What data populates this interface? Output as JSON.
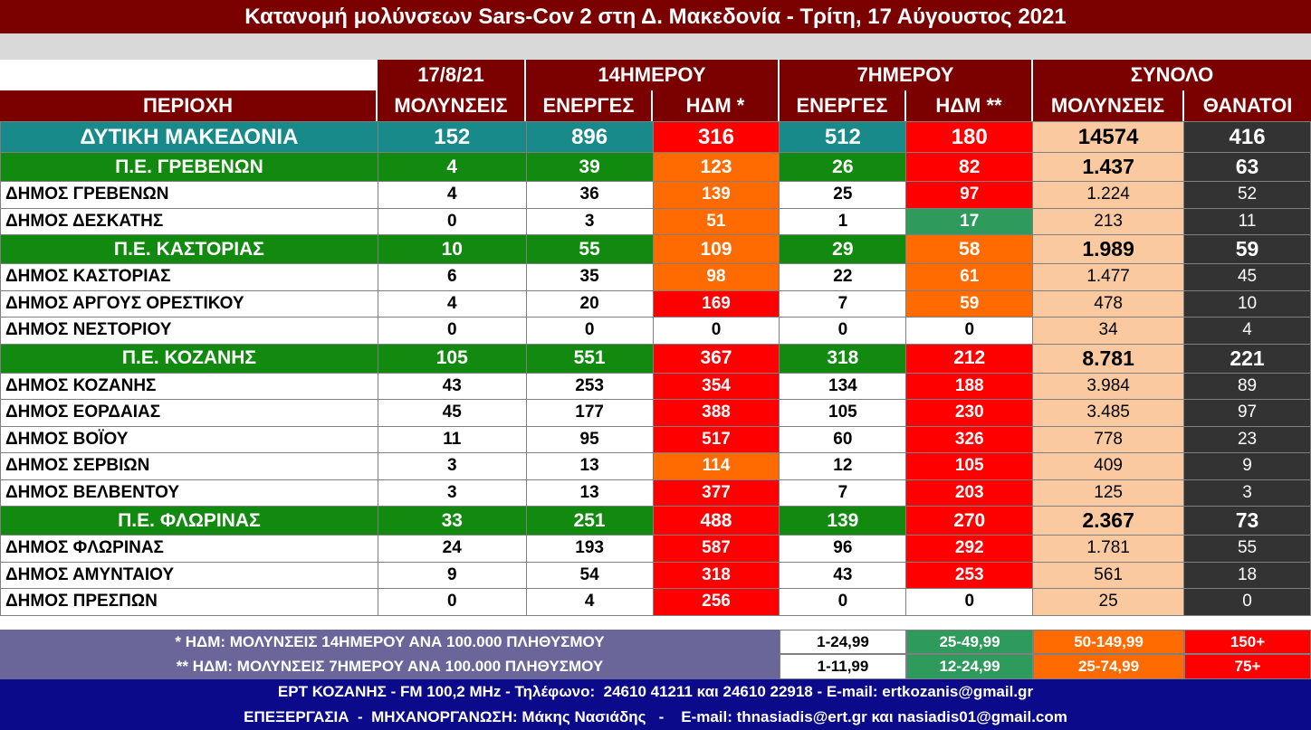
{
  "title": "Κατανομή μολύνσεων Sars-Cov 2 στη Δ. Μακεδονία - Τρίτη, 17 Αύγουστος 2021",
  "header": {
    "group_date": "17/8/21",
    "group_14": "14ΗΜΕΡΟΥ",
    "group_7": "7ΗΜΕΡΟΥ",
    "group_total": "ΣΥΝΟΛΟ",
    "col_area": "ΠΕΡΙΟΧΗ",
    "col_infections": "ΜΟΛΥΝΣΕΙΣ",
    "col_active14": "ΕΝΕΡΓΕΣ",
    "col_idm14": "ΗΔΜ *",
    "col_active7": "ΕΝΕΡΓΕΣ",
    "col_idm7": "ΗΔΜ **",
    "col_total_infections": "ΜΟΛΥΝΣΕΙΣ",
    "col_deaths": "ΘΑΝΑΤΟΙ"
  },
  "colors": {
    "title_bg": "#7b0000",
    "region_bg": "#188a8a",
    "pe_bg": "#118a0f",
    "red": "#ff0000",
    "orange": "#ff6b00",
    "green_level": "#2e9b5d",
    "total_bg": "#fbc99f",
    "deaths_bg": "#333333",
    "legend_bg": "#6a6699",
    "footer_bg": "#0a0a8a"
  },
  "rows": [
    {
      "type": "region",
      "name": "ΔΥΤΙΚΗ ΜΑΚΕΔΟΝΙΑ",
      "infections": "152",
      "active14": "896",
      "idm14": "316",
      "idm14_level": "red",
      "active7": "512",
      "idm7": "180",
      "idm7_level": "red",
      "total": "14574",
      "deaths": "416"
    },
    {
      "type": "pe",
      "name": "Π.Ε. ΓΡΕΒΕΝΩΝ",
      "infections": "4",
      "active14": "39",
      "idm14": "123",
      "idm14_level": "orange",
      "active7": "26",
      "idm7": "82",
      "idm7_level": "red",
      "total": "1.437",
      "deaths": "63"
    },
    {
      "type": "dm",
      "name": "ΔΗΜΟΣ ΓΡΕΒΕΝΩΝ",
      "infections": "4",
      "active14": "36",
      "idm14": "139",
      "idm14_level": "orange",
      "active7": "25",
      "idm7": "97",
      "idm7_level": "red",
      "total": "1.224",
      "deaths": "52"
    },
    {
      "type": "dm",
      "name": "ΔΗΜΟΣ ΔΕΣΚΑΤΗΣ",
      "infections": "0",
      "active14": "3",
      "idm14": "51",
      "idm14_level": "orange",
      "active7": "1",
      "idm7": "17",
      "idm7_level": "green",
      "total": "213",
      "deaths": "11"
    },
    {
      "type": "pe",
      "name": "Π.Ε. ΚΑΣΤΟΡΙΑΣ",
      "infections": "10",
      "active14": "55",
      "idm14": "109",
      "idm14_level": "orange",
      "active7": "29",
      "idm7": "58",
      "idm7_level": "orange",
      "total": "1.989",
      "deaths": "59"
    },
    {
      "type": "dm",
      "name": "ΔΗΜΟΣ ΚΑΣΤΟΡΙΑΣ",
      "infections": "6",
      "active14": "35",
      "idm14": "98",
      "idm14_level": "orange",
      "active7": "22",
      "idm7": "61",
      "idm7_level": "orange",
      "total": "1.477",
      "deaths": "45"
    },
    {
      "type": "dm",
      "name": "ΔΗΜΟΣ ΑΡΓΟΥΣ ΟΡΕΣΤΙΚΟΥ",
      "infections": "4",
      "active14": "20",
      "idm14": "169",
      "idm14_level": "red",
      "active7": "7",
      "idm7": "59",
      "idm7_level": "orange",
      "total": "478",
      "deaths": "10"
    },
    {
      "type": "dm",
      "name": "ΔΗΜΟΣ ΝΕΣΤΟΡΙΟΥ",
      "infections": "0",
      "active14": "0",
      "idm14": "0",
      "idm14_level": "white",
      "active7": "0",
      "idm7": "0",
      "idm7_level": "white",
      "total": "34",
      "deaths": "4"
    },
    {
      "type": "pe",
      "name": "Π.Ε. ΚΟΖΑΝΗΣ",
      "infections": "105",
      "active14": "551",
      "idm14": "367",
      "idm14_level": "red",
      "active7": "318",
      "idm7": "212",
      "idm7_level": "red",
      "total": "8.781",
      "deaths": "221"
    },
    {
      "type": "dm",
      "name": "ΔΗΜΟΣ ΚΟΖΑΝΗΣ",
      "infections": "43",
      "active14": "253",
      "idm14": "354",
      "idm14_level": "red",
      "active7": "134",
      "idm7": "188",
      "idm7_level": "red",
      "total": "3.984",
      "deaths": "89"
    },
    {
      "type": "dm",
      "name": "ΔΗΜΟΣ ΕΟΡΔΑΙΑΣ",
      "infections": "45",
      "active14": "177",
      "idm14": "388",
      "idm14_level": "red",
      "active7": "105",
      "idm7": "230",
      "idm7_level": "red",
      "total": "3.485",
      "deaths": "97"
    },
    {
      "type": "dm",
      "name": "ΔΗΜΟΣ ΒΟΪΟΥ",
      "infections": "11",
      "active14": "95",
      "idm14": "517",
      "idm14_level": "red",
      "active7": "60",
      "idm7": "326",
      "idm7_level": "red",
      "total": "778",
      "deaths": "23"
    },
    {
      "type": "dm",
      "name": "ΔΗΜΟΣ ΣΕΡΒΙΩΝ",
      "infections": "3",
      "active14": "13",
      "idm14": "114",
      "idm14_level": "orange",
      "active7": "12",
      "idm7": "105",
      "idm7_level": "red",
      "total": "409",
      "deaths": "9"
    },
    {
      "type": "dm",
      "name": "ΔΗΜΟΣ ΒΕΛΒΕΝΤΟΥ",
      "infections": "3",
      "active14": "13",
      "idm14": "377",
      "idm14_level": "red",
      "active7": "7",
      "idm7": "203",
      "idm7_level": "red",
      "total": "125",
      "deaths": "3"
    },
    {
      "type": "pe",
      "name": "Π.Ε. ΦΛΩΡΙΝΑΣ",
      "infections": "33",
      "active14": "251",
      "idm14": "488",
      "idm14_level": "red",
      "active7": "139",
      "idm7": "270",
      "idm7_level": "red",
      "total": "2.367",
      "deaths": "73"
    },
    {
      "type": "dm",
      "name": "ΔΗΜΟΣ ΦΛΩΡΙΝΑΣ",
      "infections": "24",
      "active14": "193",
      "idm14": "587",
      "idm14_level": "red",
      "active7": "96",
      "idm7": "292",
      "idm7_level": "red",
      "total": "1.781",
      "deaths": "55"
    },
    {
      "type": "dm",
      "name": "ΔΗΜΟΣ ΑΜΥΝΤΑΙΟΥ",
      "infections": "9",
      "active14": "54",
      "idm14": "318",
      "idm14_level": "red",
      "active7": "43",
      "idm7": "253",
      "idm7_level": "red",
      "total": "561",
      "deaths": "18"
    },
    {
      "type": "dm",
      "name": "ΔΗΜΟΣ ΠΡΕΣΠΩΝ",
      "infections": "0",
      "active14": "4",
      "idm14": "256",
      "idm14_level": "red",
      "active7": "0",
      "idm7": "0",
      "idm7_level": "white",
      "total": "25",
      "deaths": "0"
    }
  ],
  "legend": {
    "note14": "* ΗΔΜ: ΜΟΛΥΝΣΕΙΣ 14ΗΜΕΡΟΥ ΑΝΑ 100.000 ΠΛΗΘΥΣΜΟΥ",
    "note7": "** ΗΔΜ: ΜΟΛΥΝΣΕΙΣ 7ΗΜΕΡΟΥ ΑΝΑ 100.000 ΠΛΗΘΥΣΜΟΥ",
    "ranges14": [
      "1-24,99",
      "25-49,99",
      "50-149,99",
      "150+"
    ],
    "ranges7": [
      "1-11,99",
      "12-24,99",
      "25-74,99",
      "75+"
    ]
  },
  "footer": {
    "line1": "ΕΡΤ ΚΟΖΑΝΗΣ - FM 100,2 MHz - Τηλέφωνο:  24610 41211 και 24610 22918 - E-mail: ertkozanis@gmail.gr",
    "line2": "ΕΠΕΞΕΡΓΑΣΙΑ  -  ΜΗΧΑΝΟΡΓΑΝΩΣΗ: Μάκης Νασιάδης   -    E-mail: thnasiadis@ert.gr και nasiadis01@gmail.com"
  }
}
